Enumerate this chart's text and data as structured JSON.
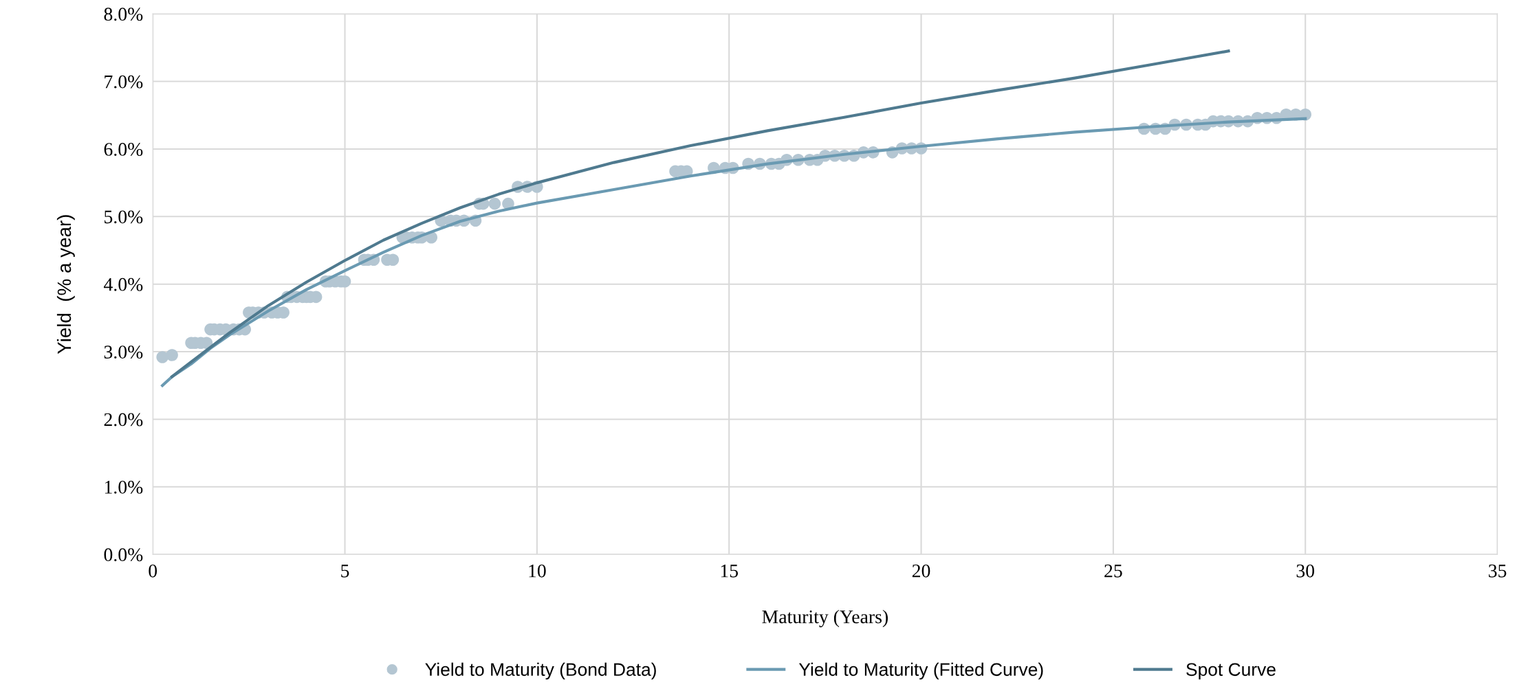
{
  "chart_data": {
    "type": "scatter",
    "xlabel": "Maturity (Years)",
    "ylabel": "Yield  (% a year)",
    "xlim": [
      0,
      35
    ],
    "xticks": [
      0,
      5,
      10,
      15,
      20,
      25,
      30,
      35
    ],
    "ylim": [
      0,
      8
    ],
    "yticks": [
      {
        "value": 0,
        "label": "0.0%"
      },
      {
        "value": 1,
        "label": "1.0%"
      },
      {
        "value": 2,
        "label": "2.0%"
      },
      {
        "value": 3,
        "label": "3.0%"
      },
      {
        "value": 4,
        "label": "4.0%"
      },
      {
        "value": 5,
        "label": "5.0%"
      },
      {
        "value": 6,
        "label": "6.0%"
      },
      {
        "value": 7,
        "label": "7.0%"
      },
      {
        "value": 8,
        "label": "8.0%"
      }
    ],
    "grid": true,
    "legend": "bottom",
    "series": [
      {
        "name": "Yield to Maturity (Bond Data)",
        "marker": "circle",
        "color": "#b4c6d2",
        "x": [
          0.25,
          0.5,
          1.0,
          1.1,
          1.25,
          1.4,
          1.5,
          1.6,
          1.75,
          1.9,
          2.1,
          2.25,
          2.4,
          2.5,
          2.6,
          2.75,
          2.9,
          3.1,
          3.25,
          3.4,
          3.5,
          3.6,
          3.75,
          3.9,
          4.0,
          4.1,
          4.25,
          4.5,
          4.6,
          4.75,
          4.9,
          5.0,
          5.5,
          5.6,
          5.75,
          6.1,
          6.25,
          6.5,
          6.6,
          6.75,
          6.9,
          7.0,
          7.25,
          7.5,
          7.75,
          7.9,
          8.1,
          8.4,
          8.5,
          8.6,
          8.9,
          9.25,
          9.5,
          9.75,
          10.0,
          13.6,
          13.75,
          13.9,
          14.6,
          14.9,
          15.1,
          15.5,
          15.8,
          16.1,
          16.3,
          16.5,
          16.8,
          17.1,
          17.3,
          17.5,
          17.75,
          18.0,
          18.25,
          18.5,
          18.75,
          19.25,
          19.5,
          19.75,
          20.0,
          25.8,
          26.1,
          26.35,
          26.6,
          26.9,
          27.2,
          27.4,
          27.6,
          27.8,
          28.0,
          28.25,
          28.5,
          28.75,
          29.0,
          29.25,
          29.5,
          29.75,
          30.0
        ],
        "values": [
          2.92,
          2.95,
          3.13,
          3.13,
          3.13,
          3.13,
          3.33,
          3.33,
          3.33,
          3.33,
          3.33,
          3.33,
          3.33,
          3.58,
          3.58,
          3.58,
          3.58,
          3.58,
          3.58,
          3.58,
          3.81,
          3.81,
          3.81,
          3.81,
          3.81,
          3.81,
          3.81,
          4.04,
          4.04,
          4.04,
          4.04,
          4.04,
          4.36,
          4.36,
          4.36,
          4.36,
          4.36,
          4.69,
          4.69,
          4.69,
          4.69,
          4.69,
          4.69,
          4.94,
          4.94,
          4.94,
          4.94,
          4.94,
          5.19,
          5.19,
          5.19,
          5.19,
          5.44,
          5.44,
          5.44,
          5.67,
          5.67,
          5.67,
          5.72,
          5.72,
          5.72,
          5.78,
          5.78,
          5.78,
          5.78,
          5.84,
          5.84,
          5.84,
          5.84,
          5.9,
          5.9,
          5.9,
          5.9,
          5.95,
          5.95,
          5.95,
          6.01,
          6.01,
          6.01,
          6.3,
          6.3,
          6.3,
          6.36,
          6.36,
          6.36,
          6.36,
          6.41,
          6.41,
          6.41,
          6.41,
          6.41,
          6.46,
          6.46,
          6.46,
          6.51,
          6.51,
          6.51
        ]
      },
      {
        "name": "Yield to Maturity (Fitted Curve)",
        "type": "line",
        "line_style": "solid",
        "marker": "none",
        "color": "#6a9ab2",
        "x": [
          0.25,
          0.5,
          1,
          1.5,
          2,
          3,
          4,
          5,
          6,
          7,
          8,
          9,
          10,
          12,
          14,
          16,
          18,
          20,
          22,
          24,
          26,
          28,
          30
        ],
        "values": [
          2.5,
          2.63,
          2.82,
          3.05,
          3.25,
          3.6,
          3.92,
          4.2,
          4.47,
          4.72,
          4.93,
          5.08,
          5.2,
          5.4,
          5.6,
          5.78,
          5.92,
          6.04,
          6.15,
          6.25,
          6.33,
          6.4,
          6.45
        ]
      },
      {
        "name": "Spot Curve",
        "type": "line",
        "line_style": "solid",
        "marker": "none",
        "color": "#4f7a8f",
        "x": [
          0.5,
          1,
          2,
          3,
          4,
          5,
          6,
          7,
          8,
          9,
          10,
          12,
          14,
          16,
          18,
          20,
          22,
          24,
          26,
          28
        ],
        "values": [
          2.63,
          2.85,
          3.28,
          3.68,
          4.03,
          4.35,
          4.65,
          4.9,
          5.13,
          5.33,
          5.5,
          5.8,
          6.05,
          6.27,
          6.47,
          6.68,
          6.87,
          7.05,
          7.25,
          7.45
        ]
      }
    ]
  }
}
